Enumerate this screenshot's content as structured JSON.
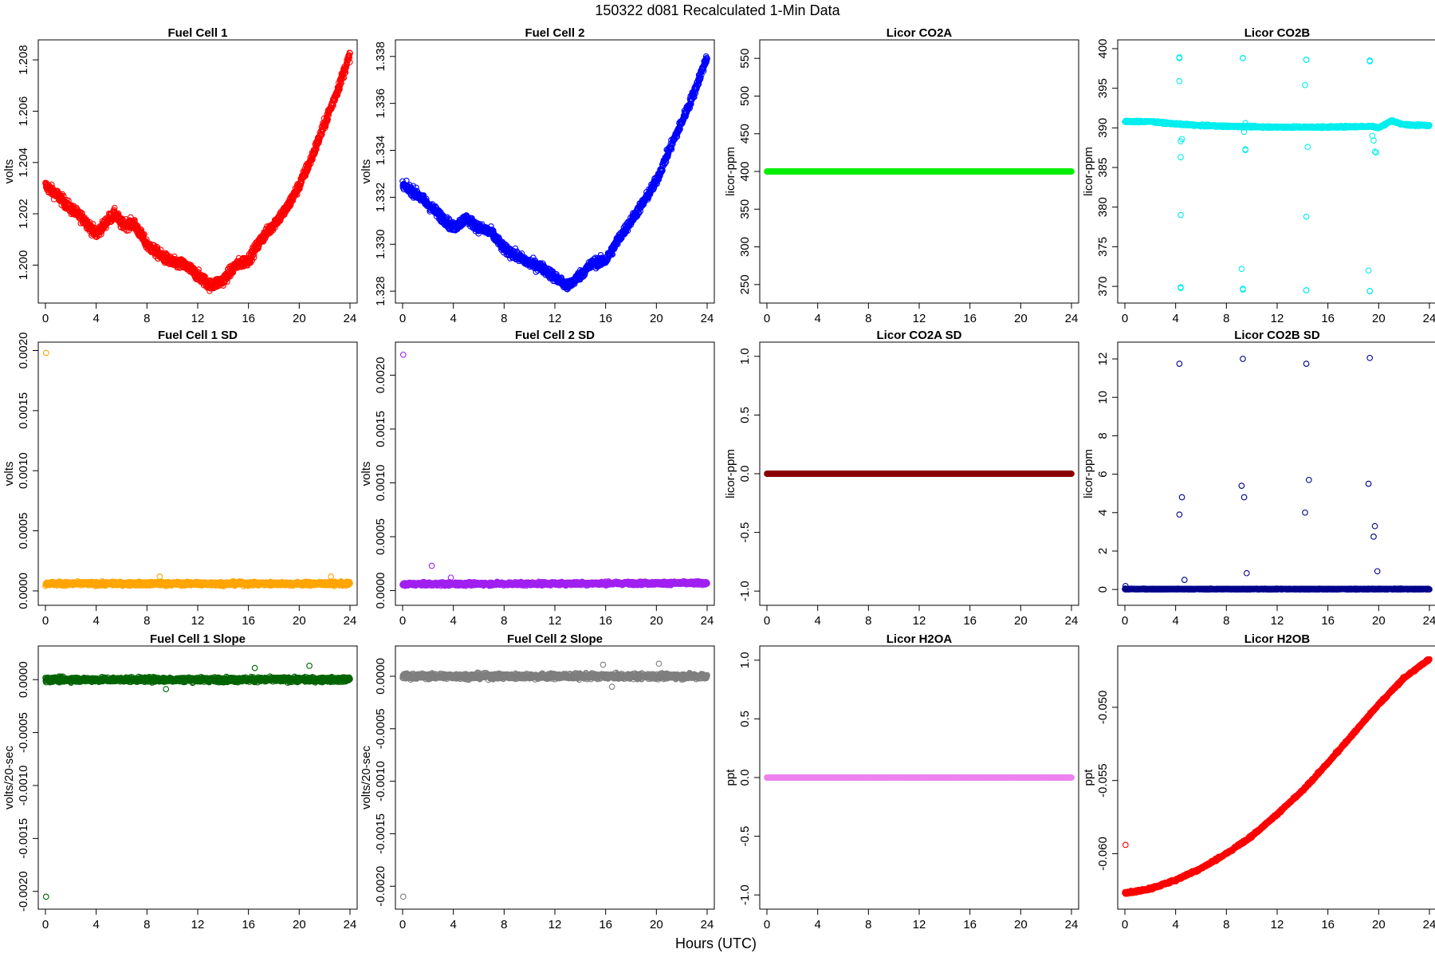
{
  "figure": {
    "title": "150322    d081    Recalculated 1-Min Data",
    "xlabel": "Hours (UTC)"
  },
  "chart_data": [
    {
      "type": "scatter",
      "title": "Fuel Cell 1",
      "ylabel": "volts",
      "color": "#ff0000",
      "xlim": [
        0,
        24
      ],
      "ylim": [
        1.1988,
        1.2085
      ],
      "xticks": [
        0,
        4,
        8,
        12,
        16,
        20,
        24
      ],
      "xtick_labels": [
        "0",
        "4",
        "8",
        "12",
        "16",
        "20",
        "24"
      ],
      "yticks": [
        1.2,
        1.202,
        1.204,
        1.206,
        1.208
      ],
      "ytick_labels": [
        "1.200",
        "1.202",
        "1.204",
        "1.206",
        "1.208"
      ],
      "points_per_hour": 60,
      "trend": [
        [
          0,
          1.2031
        ],
        [
          1,
          1.2027
        ],
        [
          2,
          1.2022
        ],
        [
          3,
          1.2018
        ],
        [
          4,
          1.2012
        ],
        [
          5,
          1.2018
        ],
        [
          5.5,
          1.202
        ],
        [
          6,
          1.2016
        ],
        [
          7,
          1.2016
        ],
        [
          8,
          1.2008
        ],
        [
          9,
          1.2004
        ],
        [
          10,
          1.2001
        ],
        [
          11,
          1.2
        ],
        [
          12,
          1.1996
        ],
        [
          13,
          1.1992
        ],
        [
          14,
          1.1994
        ],
        [
          15,
          1.2
        ],
        [
          16,
          1.2002
        ],
        [
          17,
          1.201
        ],
        [
          18,
          1.2016
        ],
        [
          19,
          1.2022
        ],
        [
          20,
          1.2031
        ],
        [
          21,
          1.2042
        ],
        [
          22,
          1.2055
        ],
        [
          23,
          1.2068
        ],
        [
          24,
          1.2082
        ]
      ],
      "noise": 0.0002,
      "outliers": []
    },
    {
      "type": "scatter",
      "title": "Fuel Cell 2",
      "ylabel": "volts",
      "color": "#0000ff",
      "xlim": [
        0,
        24
      ],
      "ylim": [
        1.3278,
        1.3384
      ],
      "xticks": [
        0,
        4,
        8,
        12,
        16,
        20,
        24
      ],
      "xtick_labels": [
        "0",
        "4",
        "8",
        "12",
        "16",
        "20",
        "24"
      ],
      "yticks": [
        1.328,
        1.33,
        1.332,
        1.334,
        1.336,
        1.338
      ],
      "ytick_labels": [
        "1.328",
        "1.330",
        "1.332",
        "1.334",
        "1.336",
        "1.338"
      ],
      "points_per_hour": 60,
      "trend": [
        [
          0,
          1.3325
        ],
        [
          1,
          1.3322
        ],
        [
          2,
          1.3317
        ],
        [
          3,
          1.3312
        ],
        [
          4,
          1.3307
        ],
        [
          5,
          1.3311
        ],
        [
          6,
          1.3307
        ],
        [
          7,
          1.3305
        ],
        [
          8,
          1.3298
        ],
        [
          9,
          1.3295
        ],
        [
          10,
          1.3292
        ],
        [
          11,
          1.329
        ],
        [
          12,
          1.3286
        ],
        [
          13,
          1.3282
        ],
        [
          14,
          1.3287
        ],
        [
          15,
          1.3292
        ],
        [
          16,
          1.3293
        ],
        [
          17,
          1.3302
        ],
        [
          18,
          1.331
        ],
        [
          19,
          1.3318
        ],
        [
          20,
          1.3327
        ],
        [
          21,
          1.334
        ],
        [
          22,
          1.3352
        ],
        [
          23,
          1.3365
        ],
        [
          24,
          1.338
        ]
      ],
      "noise": 0.0002,
      "outliers": []
    },
    {
      "type": "scatter",
      "title": "Licor CO2A",
      "ylabel": "licor-ppm",
      "color": "#00ee00",
      "xlim": [
        0,
        24
      ],
      "ylim": [
        235,
        565
      ],
      "xticks": [
        0,
        4,
        8,
        12,
        16,
        20,
        24
      ],
      "xtick_labels": [
        "0",
        "4",
        "8",
        "12",
        "16",
        "20",
        "24"
      ],
      "yticks": [
        250,
        300,
        350,
        400,
        450,
        500,
        550
      ],
      "ytick_labels": [
        "250",
        "300",
        "350",
        "400",
        "450",
        "500",
        "550"
      ],
      "points_per_hour": 60,
      "trend": [
        [
          0,
          400
        ],
        [
          24,
          400
        ]
      ],
      "noise": 0,
      "outliers": []
    },
    {
      "type": "scatter",
      "title": "Licor CO2B",
      "ylabel": "licor-ppm",
      "color": "#00eeee",
      "xlim": [
        0,
        24
      ],
      "ylim": [
        368.8,
        400.2
      ],
      "xticks": [
        0,
        4,
        8,
        12,
        16,
        20,
        24
      ],
      "xtick_labels": [
        "0",
        "4",
        "8",
        "12",
        "16",
        "20",
        "24"
      ],
      "yticks": [
        370,
        375,
        380,
        385,
        390,
        395,
        400
      ],
      "ytick_labels": [
        "370",
        "375",
        "380",
        "385",
        "390",
        "395",
        "400"
      ],
      "points_per_hour": 60,
      "trend": [
        [
          0,
          390.8
        ],
        [
          2,
          390.8
        ],
        [
          4,
          390.5
        ],
        [
          6,
          390.3
        ],
        [
          8,
          390.2
        ],
        [
          12,
          390.1
        ],
        [
          16,
          390.1
        ],
        [
          19.5,
          390.2
        ],
        [
          20,
          390.0
        ],
        [
          21,
          390.9
        ],
        [
          22,
          390.4
        ],
        [
          24,
          390.3
        ]
      ],
      "noise": 0.1,
      "outliers": [
        [
          4.3,
          398.9
        ],
        [
          4.3,
          398.8
        ],
        [
          4.3,
          395.9
        ],
        [
          4.4,
          388.3
        ],
        [
          4.5,
          388.6
        ],
        [
          4.4,
          386.3
        ],
        [
          4.4,
          379.0
        ],
        [
          4.4,
          369.8
        ],
        [
          4.4,
          369.9
        ],
        [
          9.3,
          398.8
        ],
        [
          9.3,
          398.8
        ],
        [
          9.4,
          389.5
        ],
        [
          9.5,
          390.6
        ],
        [
          9.5,
          387.3
        ],
        [
          9.5,
          387.2
        ],
        [
          9.2,
          372.2
        ],
        [
          9.3,
          369.6
        ],
        [
          9.3,
          369.7
        ],
        [
          14.3,
          398.6
        ],
        [
          14.3,
          398.6
        ],
        [
          14.2,
          395.4
        ],
        [
          14.4,
          387.6
        ],
        [
          14.3,
          378.8
        ],
        [
          14.3,
          369.5
        ],
        [
          14.3,
          369.5
        ],
        [
          19.3,
          398.4
        ],
        [
          19.3,
          398.5
        ],
        [
          19.5,
          389.0
        ],
        [
          19.6,
          388.4
        ],
        [
          19.7,
          387.0
        ],
        [
          19.8,
          386.9
        ],
        [
          19.2,
          372.0
        ],
        [
          19.3,
          369.4
        ],
        [
          19.3,
          369.4
        ]
      ]
    },
    {
      "type": "scatter",
      "title": "Fuel Cell 1 SD",
      "ylabel": "volts",
      "color": "#ffa500",
      "xlim": [
        0,
        24
      ],
      "ylim": [
        -6e-05,
        0.00201
      ],
      "xticks": [
        0,
        4,
        8,
        12,
        16,
        20,
        24
      ],
      "xtick_labels": [
        "0",
        "4",
        "8",
        "12",
        "16",
        "20",
        "24"
      ],
      "yticks": [
        0.0,
        0.0005,
        0.001,
        0.0015,
        0.002
      ],
      "ytick_labels": [
        "0.0000",
        "0.0005",
        "0.0010",
        "0.0015",
        "0.0020"
      ],
      "points_per_hour": 60,
      "trend": [
        [
          0,
          6e-05
        ],
        [
          24,
          6e-05
        ]
      ],
      "noise": 1.5e-05,
      "outliers": [
        [
          0.05,
          0.00198
        ],
        [
          9.0,
          0.00012
        ],
        [
          22.5,
          0.00012
        ]
      ]
    },
    {
      "type": "scatter",
      "title": "Fuel Cell 2 SD",
      "ylabel": "volts",
      "color": "#a020f0",
      "xlim": [
        0,
        24
      ],
      "ylim": [
        -7e-05,
        0.00224
      ],
      "xticks": [
        0,
        4,
        8,
        12,
        16,
        20,
        24
      ],
      "xtick_labels": [
        "0",
        "4",
        "8",
        "12",
        "16",
        "20",
        "24"
      ],
      "yticks": [
        0.0,
        0.0005,
        0.001,
        0.0015,
        0.002
      ],
      "ytick_labels": [
        "0.0000",
        "0.0005",
        "0.0010",
        "0.0015",
        "0.0020"
      ],
      "points_per_hour": 60,
      "trend": [
        [
          0,
          6e-05
        ],
        [
          24,
          7e-05
        ]
      ],
      "noise": 1.5e-05,
      "outliers": [
        [
          0.05,
          0.00219
        ],
        [
          2.3,
          0.00023
        ],
        [
          3.8,
          0.00012
        ]
      ]
    },
    {
      "type": "scatter",
      "title": "Licor CO2A SD",
      "ylabel": "licor-ppm",
      "color": "#8b0000",
      "xlim": [
        0,
        24
      ],
      "ylim": [
        -1.06,
        1.06
      ],
      "xticks": [
        0,
        4,
        8,
        12,
        16,
        20,
        24
      ],
      "xtick_labels": [
        "0",
        "4",
        "8",
        "12",
        "16",
        "20",
        "24"
      ],
      "yticks": [
        -1.0,
        -0.5,
        0.0,
        0.5,
        1.0
      ],
      "ytick_labels": [
        "-1.0",
        "-0.5",
        "0.0",
        "0.5",
        "1.0"
      ],
      "points_per_hour": 60,
      "trend": [
        [
          0,
          0
        ],
        [
          24,
          0
        ]
      ],
      "noise": 0,
      "outliers": []
    },
    {
      "type": "scatter",
      "title": "Licor CO2B SD",
      "ylabel": "licor-ppm",
      "color": "#00008b",
      "xlim": [
        0,
        24
      ],
      "ylim": [
        -0.45,
        12.5
      ],
      "xticks": [
        0,
        4,
        8,
        12,
        16,
        20,
        24
      ],
      "xtick_labels": [
        "0",
        "4",
        "8",
        "12",
        "16",
        "20",
        "24"
      ],
      "yticks": [
        0,
        2,
        4,
        6,
        8,
        10,
        12
      ],
      "ytick_labels": [
        "0",
        "2",
        "4",
        "6",
        "8",
        "10",
        "12"
      ],
      "points_per_hour": 60,
      "trend": [
        [
          0,
          0.02
        ],
        [
          24,
          0.02
        ]
      ],
      "noise": 0.02,
      "outliers": [
        [
          0.05,
          0.18
        ],
        [
          4.3,
          11.75
        ],
        [
          4.3,
          3.9
        ],
        [
          4.5,
          4.8
        ],
        [
          4.7,
          0.5
        ],
        [
          9.3,
          12.0
        ],
        [
          9.2,
          5.4
        ],
        [
          9.4,
          4.8
        ],
        [
          9.6,
          0.85
        ],
        [
          14.3,
          11.75
        ],
        [
          14.2,
          4.0
        ],
        [
          14.5,
          5.7
        ],
        [
          19.3,
          12.05
        ],
        [
          19.2,
          5.5
        ],
        [
          19.6,
          2.75
        ],
        [
          19.7,
          3.3
        ],
        [
          19.9,
          0.95
        ]
      ]
    },
    {
      "type": "scatter",
      "title": "Fuel Cell 1 Slope",
      "ylabel": "volts/20-sec",
      "color": "#006400",
      "xlim": [
        0,
        24
      ],
      "ylim": [
        -0.0021,
        0.00025
      ],
      "xticks": [
        0,
        4,
        8,
        12,
        16,
        20,
        24
      ],
      "xtick_labels": [
        "0",
        "4",
        "8",
        "12",
        "16",
        "20",
        "24"
      ],
      "yticks": [
        -0.002,
        -0.0015,
        -0.001,
        -0.0005,
        0.0
      ],
      "ytick_labels": [
        "-0.0020",
        "-0.0015",
        "-0.0010",
        "-0.0005",
        "0.0000"
      ],
      "points_per_hour": 60,
      "trend": [
        [
          0,
          0
        ],
        [
          24,
          0
        ]
      ],
      "noise": 2.2e-05,
      "outliers": [
        [
          0.05,
          -0.00205
        ],
        [
          20.8,
          0.00013
        ],
        [
          9.5,
          -9e-05
        ],
        [
          16.5,
          0.00011
        ]
      ]
    },
    {
      "type": "scatter",
      "title": "Fuel Cell 2 Slope",
      "ylabel": "volts/20-sec",
      "color": "#7f7f7f",
      "xlim": [
        0,
        24
      ],
      "ylim": [
        -0.00215,
        0.00022
      ],
      "xticks": [
        0,
        4,
        8,
        12,
        16,
        20,
        24
      ],
      "xtick_labels": [
        "0",
        "4",
        "8",
        "12",
        "16",
        "20",
        "24"
      ],
      "yticks": [
        -0.002,
        -0.0015,
        -0.001,
        -0.0005,
        0.0
      ],
      "ytick_labels": [
        "-0.0020",
        "-0.0015",
        "-0.0010",
        "-0.0005",
        "0.0000"
      ],
      "points_per_hour": 60,
      "trend": [
        [
          0,
          0
        ],
        [
          24,
          0
        ]
      ],
      "noise": 2.5e-05,
      "outliers": [
        [
          0.05,
          -0.0021
        ],
        [
          20.2,
          0.00012
        ],
        [
          15.8,
          0.00011
        ],
        [
          16.5,
          -0.0001
        ]
      ]
    },
    {
      "type": "scatter",
      "title": "Licor H2OA",
      "ylabel": "ppt",
      "color": "#ee82ee",
      "xlim": [
        0,
        24
      ],
      "ylim": [
        -1.06,
        1.06
      ],
      "xticks": [
        0,
        4,
        8,
        12,
        16,
        20,
        24
      ],
      "xtick_labels": [
        "0",
        "4",
        "8",
        "12",
        "16",
        "20",
        "24"
      ],
      "yticks": [
        -1.0,
        -0.5,
        0.0,
        0.5,
        1.0
      ],
      "ytick_labels": [
        "-1.0",
        "-0.5",
        "0.0",
        "0.5",
        "1.0"
      ],
      "points_per_hour": 60,
      "trend": [
        [
          0,
          0
        ],
        [
          24,
          0
        ]
      ],
      "noise": 0,
      "outliers": []
    },
    {
      "type": "scatter",
      "title": "Licor H2OB",
      "ylabel": "ppt",
      "color": "#ff0000",
      "xlim": [
        0,
        24
      ],
      "ylim": [
        -0.0633,
        -0.0463
      ],
      "xticks": [
        0,
        4,
        8,
        12,
        16,
        20,
        24
      ],
      "xtick_labels": [
        "0",
        "4",
        "8",
        "12",
        "16",
        "20",
        "24"
      ],
      "yticks": [
        -0.06,
        -0.055,
        -0.05
      ],
      "ytick_labels": [
        "-0.060",
        "-0.055",
        "-0.050"
      ],
      "points_per_hour": 60,
      "trend": [
        [
          0,
          -0.0627
        ],
        [
          2,
          -0.0624
        ],
        [
          4,
          -0.0618
        ],
        [
          6,
          -0.061
        ],
        [
          8,
          -0.06
        ],
        [
          10,
          -0.0588
        ],
        [
          12,
          -0.0573
        ],
        [
          14,
          -0.0557
        ],
        [
          16,
          -0.0538
        ],
        [
          18,
          -0.0518
        ],
        [
          20,
          -0.0498
        ],
        [
          22,
          -0.048
        ],
        [
          24,
          -0.0467
        ]
      ],
      "noise": 8e-05,
      "outliers": [
        [
          0.05,
          -0.0594
        ]
      ]
    }
  ]
}
